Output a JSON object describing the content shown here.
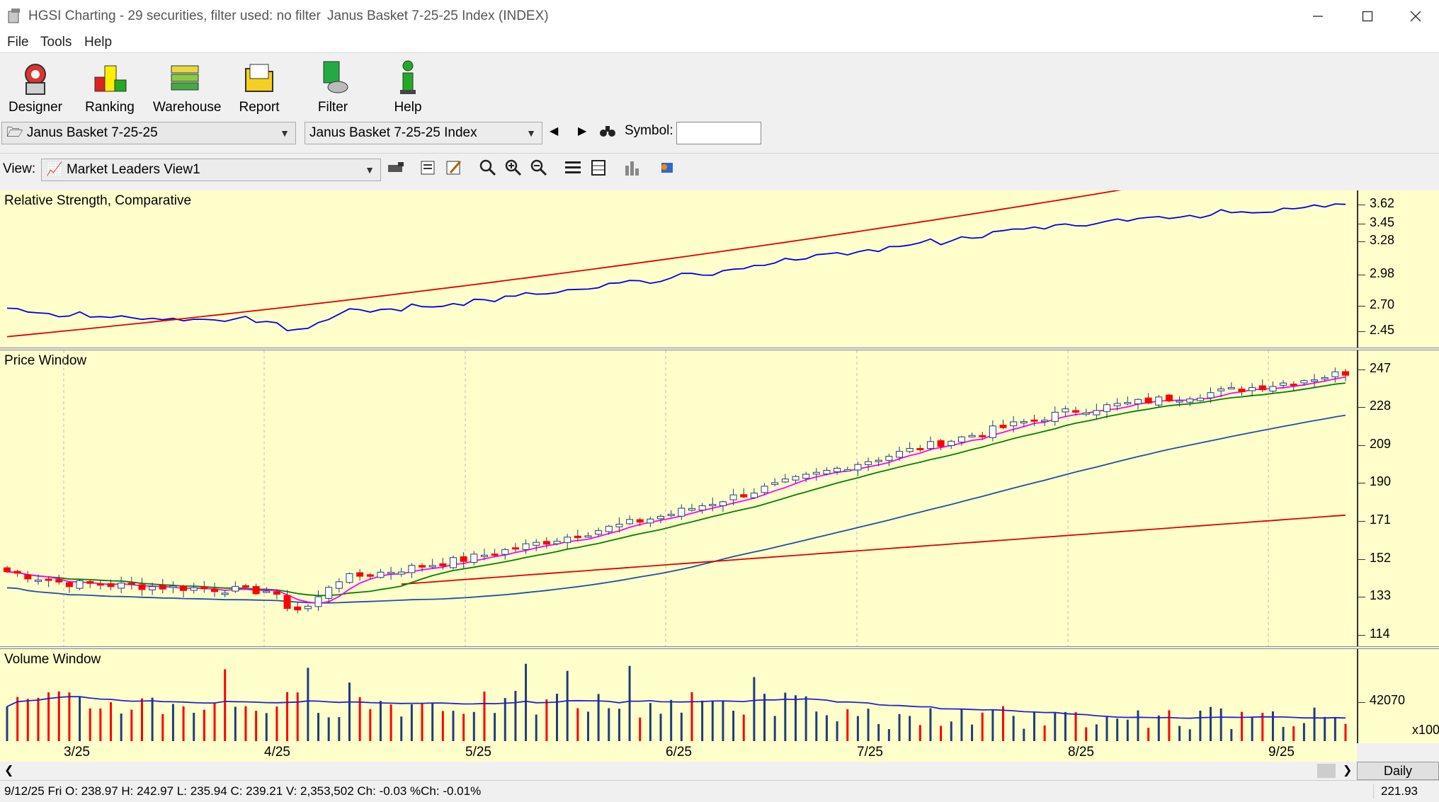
{
  "window": {
    "title": "HGSI Charting - 29 securities, filter used: no filter",
    "subtitle": "Janus Basket 7-25-25 Index (INDEX)"
  },
  "menu": [
    "File",
    "Tools",
    "Help"
  ],
  "toolbar": [
    {
      "label": "Designer",
      "icon": "designer-icon"
    },
    {
      "label": "Ranking",
      "icon": "ranking-icon"
    },
    {
      "label": "Warehouse",
      "icon": "warehouse-icon"
    },
    {
      "label": "Report",
      "icon": "report-icon"
    },
    {
      "label": "Filter",
      "icon": "filter-icon"
    },
    {
      "label": "Help",
      "icon": "help-icon"
    }
  ],
  "selectors": {
    "basket": "Janus Basket 7-25-25",
    "security": "Janus Basket 7-25-25 Index",
    "symbol_label": "Symbol:",
    "symbol_value": ""
  },
  "view": {
    "label": "View:",
    "selected": "Market Leaders View1"
  },
  "panels": {
    "rs": {
      "title": "Relative Strength, Comparative",
      "ticks": [
        "3.62",
        "3.45",
        "3.28",
        "2.98",
        "2.70",
        "2.45"
      ]
    },
    "price": {
      "title": "Price Window",
      "ticks": [
        "247",
        "228",
        "209",
        "190",
        "171",
        "152",
        "133",
        "114"
      ]
    },
    "volume": {
      "title": "Volume Window",
      "ticks": [
        "42070"
      ],
      "multiplier": "x100"
    }
  },
  "dates": [
    "3/25",
    "4/25",
    "5/25",
    "6/25",
    "7/25",
    "8/25",
    "9/25"
  ],
  "timeframe": "Daily",
  "status": {
    "text": "9/12/25 Fri O: 238.97 H: 242.97 L: 235.94 C: 239.21 V: 2,353,502 Ch: -0.03 %Ch: -0.01%",
    "value": "221.93"
  },
  "chart_data": {
    "type": "candlestick",
    "x": [
      "3/25",
      "4/25",
      "5/25",
      "6/25",
      "7/25",
      "8/25",
      "9/25"
    ],
    "price_ylim": [
      114,
      247
    ],
    "close_by_month": [
      140,
      136,
      152,
      174,
      200,
      226,
      239
    ],
    "rs_ylim": [
      2.45,
      3.62
    ],
    "volume_scale": "x100",
    "colors": {
      "up": "#1f3d7a",
      "down": "#ff0000",
      "ma_pink": "#ff00ff",
      "ma_green": "#008000",
      "ma_blue": "#1f4fa0",
      "ma_red": "#e00000",
      "rs_line": "#0000e0"
    }
  }
}
